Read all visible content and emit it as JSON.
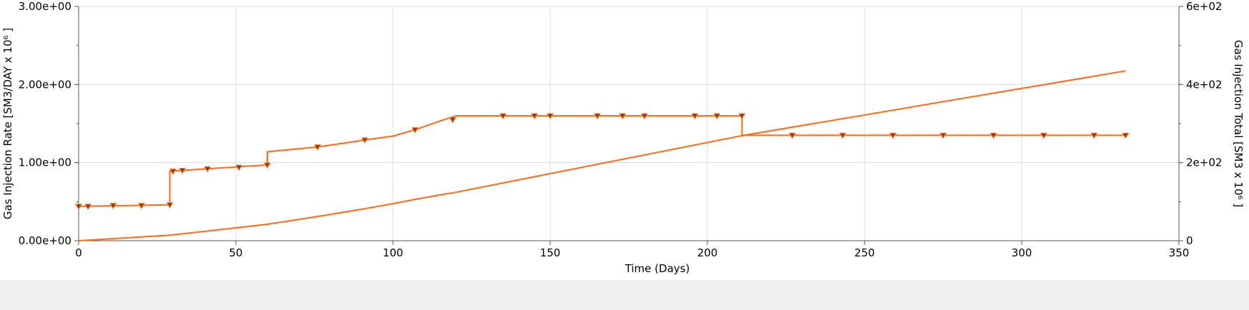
{
  "chart_data": {
    "type": "line",
    "title": "",
    "xlabel": "Time (Days)",
    "ylabel": "Gas Injection Rate [SM3/DAY x 10⁶ ]",
    "ylabel2": "Gas Injection Total [SM3 x 10⁶ ]",
    "xlim": [
      0,
      350
    ],
    "ylim": [
      0,
      3
    ],
    "ylim2": [
      0,
      600
    ],
    "x_ticks": [
      0,
      50,
      100,
      150,
      200,
      250,
      300,
      350
    ],
    "x_tick_labels": [
      "0",
      "50",
      "100",
      "150",
      "200",
      "250",
      "300",
      "350"
    ],
    "y_ticks": [
      0,
      1,
      2,
      3
    ],
    "y_tick_labels": [
      "0.00e+00",
      "1.00e+00",
      "2.00e+00",
      "3.00e+00"
    ],
    "y2_ticks": [
      0,
      200,
      400,
      600
    ],
    "y2_tick_labels": [
      "0",
      "2e+02",
      "4e+02",
      "6e+02"
    ],
    "grid": true,
    "colors": {
      "series": "#ff6a13",
      "marker_fill": "#8b3a1a",
      "grid": "#dcdcdc"
    },
    "series": [
      {
        "axis": "left",
        "step": true,
        "points": [
          [
            0,
            0.44
          ],
          [
            29,
            0.46
          ],
          [
            29,
            0.89
          ],
          [
            60,
            0.97
          ],
          [
            60,
            1.14
          ],
          [
            76,
            1.2
          ],
          [
            91,
            1.29
          ],
          [
            100,
            1.34
          ],
          [
            107,
            1.42
          ],
          [
            114,
            1.52
          ],
          [
            120,
            1.6
          ],
          [
            211,
            1.6
          ],
          [
            211,
            1.35
          ],
          [
            333,
            1.35
          ]
        ],
        "markers": [
          [
            0,
            0.44
          ],
          [
            3,
            0.44
          ],
          [
            11,
            0.45
          ],
          [
            20,
            0.45
          ],
          [
            29,
            0.46
          ],
          [
            30,
            0.89
          ],
          [
            33,
            0.9
          ],
          [
            41,
            0.92
          ],
          [
            51,
            0.94
          ],
          [
            60,
            0.97
          ],
          [
            76,
            1.2
          ],
          [
            91,
            1.29
          ],
          [
            107,
            1.42
          ],
          [
            119,
            1.55
          ],
          [
            135,
            1.6
          ],
          [
            145,
            1.6
          ],
          [
            150,
            1.6
          ],
          [
            165,
            1.6
          ],
          [
            173,
            1.6
          ],
          [
            180,
            1.6
          ],
          [
            196,
            1.6
          ],
          [
            203,
            1.6
          ],
          [
            211,
            1.6
          ],
          [
            227,
            1.35
          ],
          [
            243,
            1.35
          ],
          [
            259,
            1.35
          ],
          [
            275,
            1.35
          ],
          [
            291,
            1.35
          ],
          [
            307,
            1.35
          ],
          [
            323,
            1.35
          ],
          [
            333,
            1.35
          ]
        ]
      },
      {
        "axis": "right",
        "step": false,
        "points": [
          [
            0,
            0
          ],
          [
            29,
            14
          ],
          [
            60,
            42
          ],
          [
            76,
            62
          ],
          [
            91,
            82
          ],
          [
            100,
            95
          ],
          [
            107,
            106
          ],
          [
            114,
            116
          ],
          [
            120,
            124
          ],
          [
            211,
            269
          ],
          [
            333,
            435
          ]
        ],
        "markers": []
      }
    ]
  }
}
